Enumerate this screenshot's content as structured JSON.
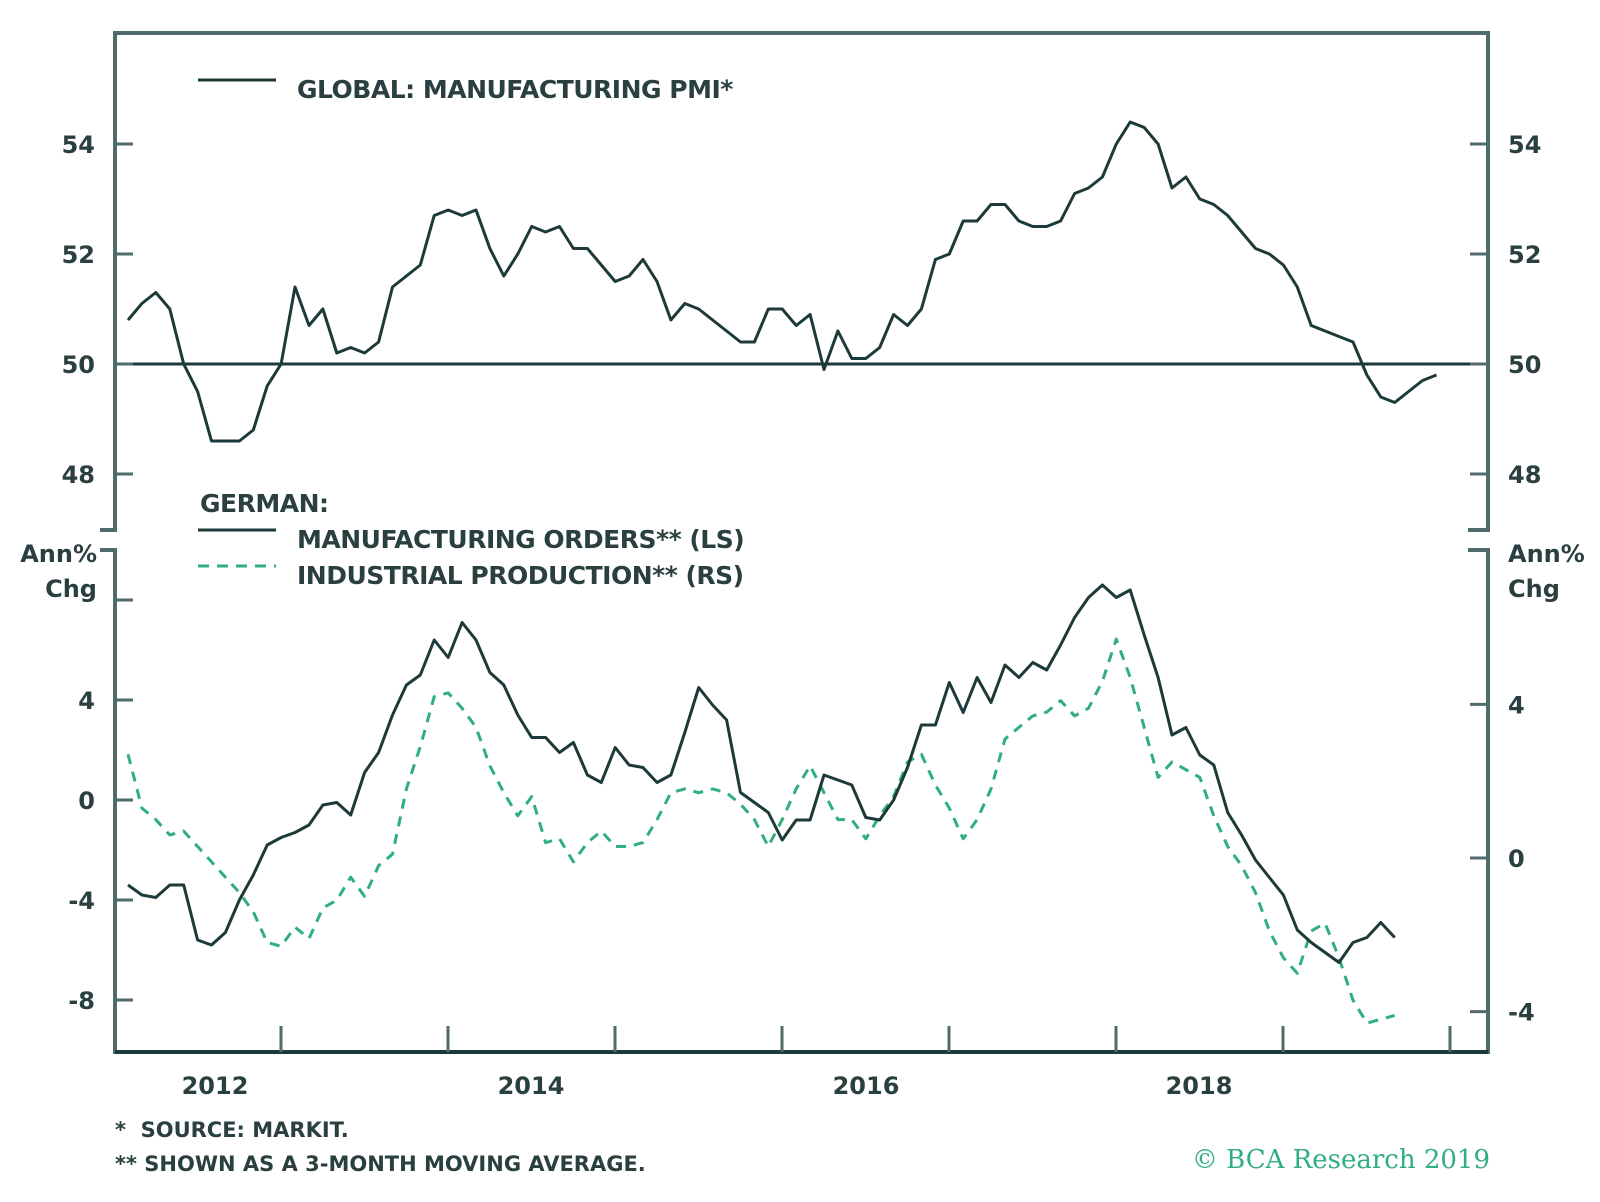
{
  "chart_data": [
    {
      "type": "line",
      "panel": "top",
      "title": "GLOBAL: MANUFACTURING PMI*",
      "ylabel": "",
      "ylim": [
        47.0,
        56.0
      ],
      "yticks": [
        48,
        50,
        52,
        54
      ],
      "reference_line": 50,
      "x_start": "2012-01",
      "x_frequency": "monthly",
      "series": [
        {
          "name": "GLOBAL: MANUFACTURING PMI*",
          "axis": "left",
          "style": "solid",
          "color": "#1d3a3a",
          "values": [
            50.8,
            51.1,
            51.3,
            51.0,
            50.0,
            49.5,
            48.6,
            48.6,
            48.6,
            48.8,
            49.6,
            50.0,
            51.4,
            50.7,
            51.0,
            50.2,
            50.3,
            50.2,
            50.4,
            51.4,
            51.6,
            51.8,
            52.7,
            52.8,
            52.7,
            52.8,
            52.1,
            51.6,
            52.0,
            52.5,
            52.4,
            52.5,
            52.1,
            52.1,
            51.8,
            51.5,
            51.6,
            51.9,
            51.5,
            50.8,
            51.1,
            51.0,
            50.8,
            50.6,
            50.4,
            50.4,
            51.0,
            51.0,
            50.7,
            50.9,
            49.9,
            50.6,
            50.1,
            50.1,
            50.3,
            50.9,
            50.7,
            51.0,
            51.9,
            52.0,
            52.6,
            52.6,
            52.9,
            52.9,
            52.6,
            52.5,
            52.5,
            52.6,
            53.1,
            53.2,
            53.4,
            54.0,
            54.4,
            54.3,
            54.0,
            53.2,
            53.4,
            53.0,
            52.9,
            52.7,
            52.4,
            52.1,
            52.0,
            51.8,
            51.4,
            50.7,
            50.6,
            50.5,
            50.4,
            49.8,
            49.4,
            49.3,
            49.5,
            49.7,
            49.8
          ]
        }
      ]
    },
    {
      "type": "line",
      "panel": "bottom",
      "title": "GERMAN:",
      "ylabel_left": "Ann% Chg",
      "ylabel_right": "Ann% Chg",
      "ylim_left": [
        -10.0,
        10.0
      ],
      "ylim_right": [
        -5.5,
        7.5
      ],
      "yticks_left": [
        -8,
        -4,
        0,
        4,
        8
      ],
      "ytick_labels_left": [
        "-8",
        "-4",
        "0",
        "4",
        ""
      ],
      "yticks_right": [
        -4,
        0,
        4
      ],
      "x_start": "2012-01",
      "x_frequency": "monthly",
      "series": [
        {
          "name": "MANUFACTURING ORDERS** (LS)",
          "axis": "left",
          "style": "solid",
          "color": "#1d3a3a",
          "values": [
            -3.4,
            -3.8,
            -3.9,
            -3.4,
            -3.4,
            -5.6,
            -5.8,
            -5.3,
            -4.0,
            -3.0,
            -1.8,
            -1.5,
            -1.3,
            -1.0,
            -0.2,
            -0.1,
            -0.6,
            1.1,
            1.9,
            3.4,
            4.6,
            5.0,
            6.4,
            5.7,
            7.1,
            6.4,
            5.1,
            4.6,
            3.4,
            2.5,
            2.5,
            1.9,
            2.3,
            1.0,
            0.7,
            2.1,
            1.4,
            1.3,
            0.7,
            1.0,
            2.7,
            4.5,
            3.8,
            3.2,
            0.3,
            -0.1,
            -0.5,
            -1.6,
            -0.8,
            -0.8,
            1.0,
            0.8,
            0.6,
            -0.7,
            -0.8,
            0.0,
            1.3,
            3.0,
            3.0,
            4.7,
            3.5,
            4.9,
            3.9,
            5.4,
            4.9,
            5.5,
            5.2,
            6.2,
            7.3,
            8.1,
            8.6,
            8.1,
            8.4,
            6.6,
            4.9,
            2.6,
            2.9,
            1.8,
            1.4,
            -0.5,
            -1.4,
            -2.4,
            -3.1,
            -3.8,
            -5.2,
            -5.7,
            -6.1,
            -6.5,
            -5.7,
            -5.5,
            -4.9,
            -5.5
          ]
        },
        {
          "name": "INDUSTRIAL PRODUCTION** (RS)",
          "axis": "right",
          "style": "dashed",
          "color": "#2fae7e",
          "values": [
            2.7,
            1.3,
            1.0,
            0.6,
            0.7,
            0.3,
            -0.1,
            -0.5,
            -0.9,
            -1.4,
            -2.2,
            -2.3,
            -1.8,
            -2.1,
            -1.3,
            -1.1,
            -0.5,
            -1.0,
            -0.2,
            0.1,
            1.8,
            2.9,
            4.2,
            4.3,
            3.9,
            3.4,
            2.4,
            1.7,
            1.1,
            1.6,
            0.4,
            0.5,
            -0.1,
            0.4,
            0.7,
            0.3,
            0.3,
            0.4,
            1.0,
            1.7,
            1.8,
            1.7,
            1.8,
            1.7,
            1.4,
            1.0,
            0.3,
            1.0,
            1.8,
            2.4,
            1.7,
            1.0,
            1.0,
            0.5,
            1.1,
            1.6,
            2.5,
            2.7,
            1.9,
            1.3,
            0.5,
            1.0,
            1.8,
            3.1,
            3.4,
            3.7,
            3.8,
            4.1,
            3.7,
            3.9,
            4.6,
            5.7,
            4.7,
            3.4,
            2.1,
            2.5,
            2.3,
            2.1,
            1.1,
            0.3,
            -0.2,
            -0.9,
            -1.9,
            -2.6,
            -3.0,
            -1.9,
            -1.7,
            -2.6,
            -3.7,
            -4.3,
            -4.2,
            -4.1
          ]
        }
      ]
    }
  ],
  "x_axis": {
    "tick_labels": [
      "2012",
      "2014",
      "2016",
      "2018"
    ],
    "range": [
      "2012-01",
      "2020-03"
    ]
  },
  "legend": {
    "top": {
      "label": "GLOBAL: MANUFACTURING PMI*"
    },
    "bottom": {
      "heading": "GERMAN:",
      "orders_label": "MANUFACTURING ORDERS** (LS)",
      "production_label": "INDUSTRIAL PRODUCTION** (RS)"
    }
  },
  "axis_titles": {
    "left_line1": "Ann%",
    "left_line2": "Chg",
    "right_line1": "Ann%",
    "right_line2": "Chg"
  },
  "footnotes": {
    "note1": "*  SOURCE: MARKIT.",
    "note2": "** SHOWN AS A 3-MONTH MOVING AVERAGE."
  },
  "copyright": "© BCA Research 2019",
  "colors": {
    "frame": "#4f6b6b",
    "dark_line": "#1d3a3a",
    "green_line": "#2fae7e",
    "text": "#2a3f3f"
  }
}
